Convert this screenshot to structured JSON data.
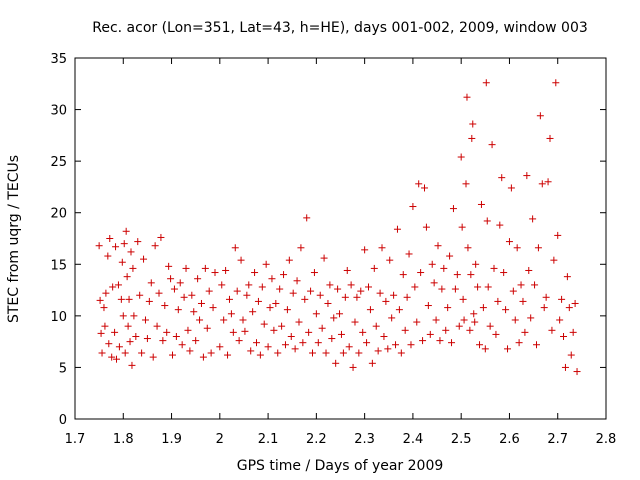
{
  "chart_data": {
    "type": "scatter",
    "title": "Rec. acor (Lon=351, Lat=43, h=HE), days 001-002, 2009, window 003",
    "xlabel": "GPS time / Days of year 2009",
    "ylabel": "STEC from uqrg / TECUs",
    "xlim": [
      1.7,
      2.8
    ],
    "ylim": [
      0,
      35
    ],
    "xticks": [
      "1.7",
      "1.8",
      "1.9",
      "2",
      "2.1",
      "2.2",
      "2.3",
      "2.4",
      "2.5",
      "2.6",
      "2.7",
      "2.8"
    ],
    "yticks": [
      "0",
      "5",
      "10",
      "15",
      "20",
      "25",
      "30",
      "35"
    ],
    "grid": false,
    "legend": false,
    "marker": "plus",
    "color": "#cc0000",
    "series": [
      {
        "x": [
          1.75,
          1.752,
          1.754,
          1.756,
          1.76,
          1.762,
          1.764,
          1.768,
          1.77,
          1.772,
          1.776,
          1.778,
          1.782,
          1.784,
          1.786,
          1.79,
          1.792,
          1.796,
          1.798,
          1.8,
          1.802,
          1.804,
          1.806,
          1.808,
          1.81,
          1.812,
          1.814,
          1.816,
          1.818,
          1.82,
          1.822,
          1.826,
          1.83,
          1.834,
          1.838,
          1.842,
          1.846,
          1.85,
          1.854,
          1.858,
          1.862,
          1.866,
          1.87,
          1.874,
          1.878,
          1.882,
          1.886,
          1.89,
          1.894,
          1.898,
          1.902,
          1.906,
          1.91,
          1.914,
          1.918,
          1.922,
          1.926,
          1.93,
          1.934,
          1.938,
          1.942,
          1.946,
          1.95,
          1.954,
          1.958,
          1.962,
          1.966,
          1.97,
          1.974,
          1.978,
          1.982,
          1.986,
          1.99
        ],
        "y": [
          16.8,
          11.5,
          8.3,
          6.4,
          10.8,
          9.0,
          12.2,
          15.8,
          7.3,
          17.5,
          6.0,
          12.8,
          8.4,
          16.7,
          5.8,
          13.0,
          7.0,
          11.6,
          15.2,
          10.0,
          17.0,
          6.4,
          18.2,
          13.8,
          9.0,
          11.6,
          7.5,
          16.2,
          5.2,
          14.6,
          10.0,
          8.0,
          17.2,
          12.0,
          6.4,
          15.5,
          9.6,
          7.8,
          11.4,
          13.2,
          6.0,
          16.8,
          9.0,
          12.2,
          17.6,
          7.6,
          11.0,
          8.4,
          14.8,
          13.6,
          6.2,
          12.6,
          8.0,
          10.6,
          13.2,
          7.2,
          11.8,
          14.6,
          8.6,
          6.6,
          12.0,
          10.4,
          7.6,
          13.6,
          9.6,
          11.2,
          6.0,
          14.6,
          8.8,
          12.4,
          6.4,
          10.8,
          14.2
        ]
      },
      {
        "x": [
          2.0,
          2.004,
          2.008,
          2.012,
          2.016,
          2.02,
          2.024,
          2.028,
          2.032,
          2.036,
          2.04,
          2.044,
          2.048,
          2.052,
          2.056,
          2.06,
          2.064,
          2.068,
          2.072,
          2.076,
          2.08,
          2.084,
          2.088,
          2.092,
          2.096,
          2.1,
          2.104,
          2.108,
          2.112,
          2.116,
          2.12,
          2.124,
          2.128,
          2.132,
          2.136,
          2.14,
          2.144,
          2.148,
          2.152,
          2.156,
          2.16,
          2.164,
          2.168,
          2.172,
          2.176,
          2.18,
          2.184,
          2.188,
          2.192,
          2.196,
          2.2,
          2.204,
          2.208,
          2.212,
          2.216,
          2.22,
          2.224,
          2.228,
          2.232,
          2.236,
          2.24,
          2.244,
          2.248,
          2.252,
          2.256,
          2.26,
          2.264,
          2.268,
          2.272,
          2.276,
          2.28,
          2.284,
          2.288,
          2.292,
          2.296
        ],
        "y": [
          7.0,
          13.0,
          9.6,
          14.4,
          6.2,
          11.6,
          10.2,
          8.4,
          16.6,
          12.4,
          7.6,
          15.4,
          9.6,
          8.5,
          12.0,
          13.0,
          6.6,
          10.4,
          14.2,
          7.4,
          11.4,
          6.2,
          12.8,
          9.2,
          15.0,
          7.0,
          10.8,
          13.6,
          8.6,
          11.2,
          6.4,
          12.6,
          9.0,
          14.0,
          7.2,
          10.6,
          15.4,
          8.0,
          12.2,
          6.8,
          13.4,
          9.4,
          16.6,
          7.4,
          11.6,
          19.5,
          8.4,
          12.4,
          6.4,
          14.2,
          10.2,
          7.4,
          12.0,
          8.8,
          15.6,
          6.4,
          11.2,
          13.0,
          7.8,
          9.8,
          5.4,
          12.6,
          10.2,
          8.2,
          6.4,
          11.8,
          14.4,
          7.0,
          13.0,
          5.0,
          9.4,
          11.8,
          6.4,
          12.4,
          8.4
        ]
      },
      {
        "x": [
          2.3,
          2.304,
          2.308,
          2.312,
          2.316,
          2.32,
          2.324,
          2.328,
          2.332,
          2.336,
          2.34,
          2.344,
          2.348,
          2.352,
          2.356,
          2.36,
          2.364,
          2.368,
          2.372,
          2.376,
          2.38,
          2.384,
          2.388,
          2.392,
          2.396,
          2.4,
          2.404,
          2.408,
          2.412,
          2.416,
          2.42,
          2.424,
          2.428,
          2.432,
          2.436,
          2.44,
          2.444,
          2.448,
          2.452,
          2.456,
          2.46,
          2.464,
          2.468,
          2.472,
          2.476,
          2.48,
          2.484,
          2.488,
          2.492,
          2.496
        ],
        "y": [
          16.4,
          7.4,
          12.8,
          10.6,
          5.4,
          14.6,
          9.0,
          6.6,
          12.2,
          16.6,
          8.0,
          11.4,
          6.8,
          15.4,
          9.8,
          12.0,
          7.2,
          18.4,
          10.6,
          6.4,
          14.0,
          8.6,
          11.8,
          16.0,
          7.2,
          20.6,
          12.8,
          9.4,
          22.8,
          14.2,
          7.6,
          22.4,
          18.6,
          11.0,
          8.2,
          15.0,
          13.2,
          9.6,
          16.8,
          7.6,
          12.6,
          14.6,
          8.6,
          10.8,
          15.8,
          7.4,
          20.4,
          12.6,
          14.0,
          9.0
        ]
      },
      {
        "x": [
          2.5,
          2.502,
          2.504,
          2.506,
          2.51,
          2.512,
          2.514,
          2.518,
          2.52,
          2.522,
          2.524,
          2.526,
          2.528,
          2.53,
          2.534,
          2.538,
          2.542,
          2.546,
          2.55,
          2.552,
          2.554,
          2.556,
          2.56,
          2.564,
          2.568,
          2.572,
          2.576,
          2.58,
          2.584,
          2.588,
          2.592,
          2.596,
          2.6,
          2.604,
          2.608,
          2.612,
          2.616,
          2.62,
          2.624,
          2.628,
          2.632,
          2.636,
          2.64,
          2.644,
          2.648,
          2.652,
          2.656,
          2.66,
          2.664,
          2.668,
          2.672,
          2.676,
          2.68,
          2.684,
          2.688,
          2.692,
          2.696,
          2.7,
          2.704,
          2.708,
          2.712,
          2.716,
          2.72,
          2.724,
          2.728,
          2.732,
          2.736,
          2.74
        ],
        "y": [
          25.4,
          18.6,
          11.6,
          9.6,
          22.8,
          31.2,
          16.6,
          8.6,
          14.0,
          27.2,
          28.6,
          10.2,
          9.4,
          15.0,
          12.8,
          7.2,
          20.8,
          10.8,
          6.8,
          32.6,
          19.2,
          12.8,
          9.0,
          26.6,
          14.6,
          8.2,
          11.4,
          18.8,
          23.4,
          14.2,
          10.6,
          6.8,
          17.2,
          22.4,
          12.4,
          9.6,
          16.6,
          7.4,
          13.0,
          11.4,
          8.4,
          23.6,
          14.4,
          9.8,
          19.4,
          13.0,
          7.2,
          16.6,
          29.4,
          22.8,
          10.8,
          11.8,
          23.0,
          27.2,
          8.6,
          15.4,
          32.6,
          17.8,
          9.6,
          11.6,
          8.0,
          5.0,
          13.8,
          10.8,
          6.2,
          8.4,
          11.2,
          4.6
        ]
      }
    ]
  }
}
